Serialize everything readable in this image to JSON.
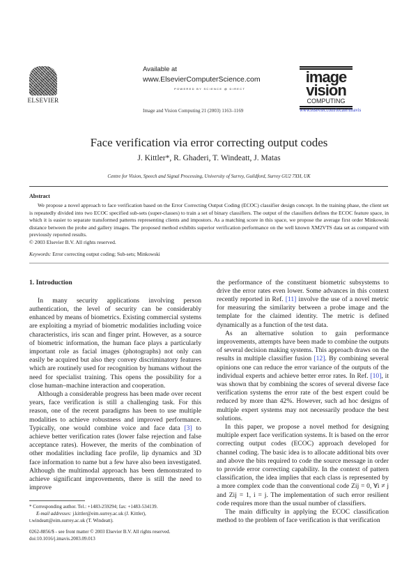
{
  "header": {
    "publisher_logo_text": "ELSEVIER",
    "available_at": "Available at",
    "site_url": "www.ElsevierComputerScience.com",
    "powered_by": "POWERED BY SCIENCE @ DIRECT",
    "journal_ref": "Image and Vision Computing 21 (2003) 1163–1169",
    "journal_logo": [
      "image",
      "vision",
      "COMPUTING"
    ],
    "journal_url": "www.elsevier.com/locate/imavis"
  },
  "paper": {
    "title": "Face verification via error correcting output codes",
    "authors": "J. Kittler*, R. Ghaderi, T. Windeatt, J. Matas",
    "affiliation": "Centre for Vision, Speech and Signal Processing, University of Surrey, Guildford, Surrey GU2 7XH, UK",
    "abstract_heading": "Abstract",
    "abstract": "We propose a novel approach to face verification based on the Error Correcting Output Coding (ECOC) classifier design concept. In the training phase, the client set is repeatedly divided into two ECOC specified sub-sets (super-classes) to train a set of binary classifiers. The output of the classifiers defines the ECOC feature space, in which it is easier to separate transformed patterns representing clients and impostors. As a matching score in this space, we propose the average first order Minkowski distance between the probe and gallery images. The proposed method exhibits superior verification performance on the well known XM2VTS data set as compared with previously reported results.",
    "abstract_copyright": "© 2003 Elsevier B.V. All rights reserved.",
    "keywords_label": "Keywords:",
    "keywords": "Error correcting output coding; Sub-sets; Minkowski"
  },
  "body": {
    "section_heading": "1. Introduction",
    "left": [
      "In many security applications involving person authentication, the level of security can be considerably enhanced by means of biometrics. Existing commercial systems are exploiting a myriad of biometric modalities including voice characteristics, iris scan and finger print. However, as a source of biometric information, the human face plays a particularly important role as facial images (photographs) not only can easily be acquired but also they convey discriminatory features which are routinely used for recognition by humans without the need for specialist training. This opens the possibility for a close human–machine interaction and cooperation.",
      {
        "a": "Although a considerable progress has been made over recent years, face verification is still a challenging task. For this reason, one of the recent paradigms has been to use multiple modalities to achieve robustness and improved performance. Typically, one would combine voice and face data ",
        "ref": "[3]",
        "b": " to achieve better verification rates (lower false rejection and false acceptance rates). However, the merits of the combination of other modalities including face profile, lip dynamics and 3D face information to name but a few have also been investigated. Although the multimodal approach has been demonstrated to achieve significant improvements, there is still the need to improve"
      }
    ],
    "right": [
      {
        "a": "the performance of the constituent biometric subsystems to drive the error rates even lower. Some advances in this context recently reported in Ref. ",
        "ref": "[11]",
        "b": " involve the use of a novel metric for measuring the similarity between a probe image and the template for the claimed identity. The metric is defined dynamically as a function of the test data."
      },
      {
        "a": "As an alternative solution to gain performance improvements, attempts have been made to combine the outputs of several decision making systems. This approach draws on the results in multiple classifier fusion ",
        "ref": "[12]",
        "b": ". By combining several opinions one can reduce the error variance of the outputs of the individual experts and achieve better error rates. In Ref. ",
        "ref2": "[10]",
        "c": ", it was shown that by combining the scores of several diverse face verification systems the error rate of the best expert could be reduced by more than 42%. However, such ad hoc designs of multiple expert systems may not necessarily produce the best solutions."
      },
      "In this paper, we propose a novel method for designing multiple expert face verification systems. It is based on the error correcting output codes (ECOC) approach developed for channel coding. The basic idea is to allocate additional bits over and above the bits required to code the source message in order to provide error correcting capability. In the context of pattern classification, the idea implies that each class is represented by a more complex code than the conventional code Zij = 0, ∀i ≠ j and Zij = 1, i = j. The implementation of such error resilient code requires more than the usual number of classifiers.",
      "The main difficulty in applying the ECOC classification method to the problem of face verification is that verification"
    ]
  },
  "footnotes": {
    "corresponding": "* Corresponding author. Tel.: +1483-259294; fax: +1483-534139.",
    "email_label": "E-mail addresses:",
    "email": "j.kittler@eim.surrey.ac.uk (J. Kittler), t.windeatt@eim.surrey.ac.uk (T. Windeatt).",
    "issn": "0262-8856/$ - see front matter © 2003 Elsevier B.V. All rights reserved.",
    "doi": "doi:10.1016/j.imavis.2003.09.013"
  }
}
